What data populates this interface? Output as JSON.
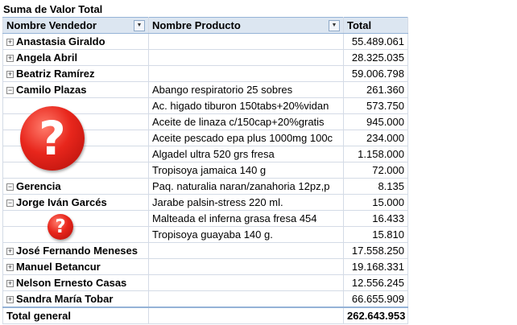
{
  "title": "Suma de Valor Total",
  "headers": {
    "vendor": "Nombre Vendedor",
    "product": "Nombre Producto",
    "total": "Total"
  },
  "rows": [
    {
      "vendor": "Anastasia Giraldo",
      "product": "",
      "total": "55.489.061",
      "expanded": false
    },
    {
      "vendor": "Angela Abril",
      "product": "",
      "total": "28.325.035",
      "expanded": false
    },
    {
      "vendor": "Beatriz Ramírez",
      "product": "",
      "total": "59.006.798",
      "expanded": false
    },
    {
      "vendor": "Camilo Plazas",
      "product": "Abango respiratorio 25 sobres",
      "total": "261.360",
      "expanded": true
    },
    {
      "vendor": "",
      "product": "Ac. higado tiburon 150tabs+20%vidan",
      "total": "573.750"
    },
    {
      "vendor": "",
      "product": "Aceite de linaza c/150cap+20%gratis",
      "total": "945.000"
    },
    {
      "vendor": "",
      "product": "Aceite pescado epa plus 1000mg 100c",
      "total": "234.000"
    },
    {
      "vendor": "",
      "product": "Algadel ultra 520 grs fresa",
      "total": "1.158.000"
    },
    {
      "vendor": "",
      "product": "Tropisoya jamaica 140 g",
      "total": "72.000"
    },
    {
      "vendor": "Gerencia",
      "product": "Paq. naturalia naran/zanahoria 12pz,p",
      "total": "8.135",
      "expanded": true
    },
    {
      "vendor": "Jorge Iván Garcés",
      "product": "Jarabe palsin-stress 220 ml.",
      "total": "15.000",
      "expanded": true
    },
    {
      "vendor": "",
      "product": "Malteada el inferna grasa fresa 454",
      "total": "16.433"
    },
    {
      "vendor": "",
      "product": "Tropisoya guayaba 140 g.",
      "total": "15.810"
    },
    {
      "vendor": "José Fernando Meneses",
      "product": "",
      "total": "17.558.250",
      "expanded": false
    },
    {
      "vendor": "Manuel Betancur",
      "product": "",
      "total": "19.168.331",
      "expanded": false
    },
    {
      "vendor": "Nelson Ernesto Casas",
      "product": "",
      "total": "12.556.245",
      "expanded": false
    },
    {
      "vendor": "Sandra María Tobar",
      "product": "",
      "total": "66.655.909",
      "expanded": false
    }
  ],
  "grand_total": {
    "label": "Total general",
    "value": "262.643.953"
  },
  "icons": {
    "expand": "+",
    "collapse": "−",
    "dropdown": "▼",
    "question": "?"
  },
  "colors": {
    "header_bg": "#dce6f1",
    "grid": "#d4dbe6",
    "question_red": "#e8261c"
  }
}
